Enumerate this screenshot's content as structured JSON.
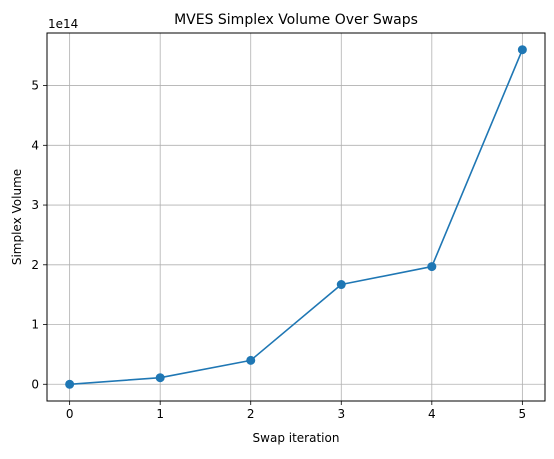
{
  "chart_data": {
    "type": "line",
    "title": "MVES Simplex Volume Over Swaps",
    "xlabel": "Swap iteration",
    "ylabel": "Simplex Volume",
    "y_scale_label": "1e14",
    "x": [
      0,
      1,
      2,
      3,
      4,
      5
    ],
    "series": [
      {
        "values": [
          0.0,
          0.11,
          0.4,
          1.67,
          1.97,
          5.6
        ]
      }
    ],
    "y_unit_multiplier": 100000000000000.0,
    "xlim": [
      -0.25,
      5.25
    ],
    "ylim": [
      -0.28,
      5.88
    ],
    "x_ticks": [
      0,
      1,
      2,
      3,
      4,
      5
    ],
    "x_tick_labels": [
      "0",
      "1",
      "2",
      "3",
      "4",
      "5"
    ],
    "y_ticks": [
      0,
      1,
      2,
      3,
      4,
      5
    ],
    "y_tick_labels": [
      "0",
      "1",
      "2",
      "3",
      "4",
      "5"
    ],
    "grid": true,
    "marker": "circle",
    "line_color": "#1f77b4",
    "grid_color": "#b0b0b0"
  }
}
